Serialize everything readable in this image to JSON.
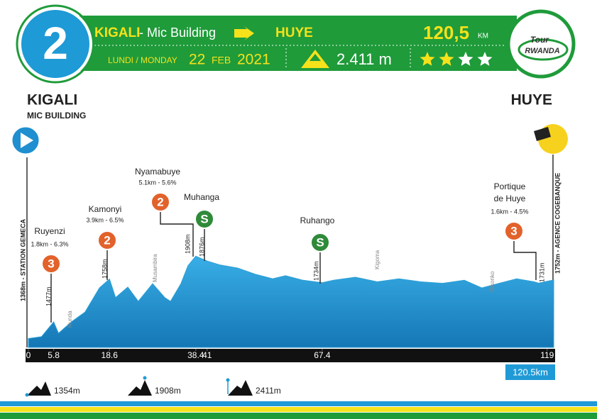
{
  "header": {
    "stage": "2",
    "start": "KIGALI",
    "start_place": "- Mic Building",
    "finish": "HUYE",
    "distance": "120,5",
    "distance_unit": "KM",
    "weekday": "LUNDI / MONDAY",
    "day": "22",
    "month": "FEB",
    "year": "2021",
    "total_climb": "2.411 m",
    "stars": {
      "filled": 2,
      "total": 4
    },
    "logo_top": "Tour",
    "logo_bottom": "RWANDA"
  },
  "route": {
    "start": "KIGALI",
    "start_place": "MIC BUILDING",
    "finish": "HUYE",
    "total_label": "120.5km"
  },
  "climbs": [
    {
      "name": "Ruyenzi",
      "detail": "1.8km - 6.3%",
      "category": "3"
    },
    {
      "name": "Kamonyi",
      "detail": "3.9km - 6.5%",
      "category": "2"
    },
    {
      "name": "Nyamabuye",
      "detail": "5.1km - 5.6%",
      "category": "2"
    },
    {
      "name": "Muhanga",
      "category": "S"
    },
    {
      "name": "Ruhango",
      "category": "S"
    },
    {
      "name": "Portique",
      "name_line2": "de Huye",
      "detail": "1.6km - 4.5%",
      "category": "3"
    }
  ],
  "points": [
    "1368m - STATION GEMECA",
    "1477m",
    "Runda",
    "1758m",
    "Musambira",
    "1908m",
    "1876m",
    "1734m",
    "Kigoma",
    "Gikonko",
    "1731m",
    "1752m - AGENCE COGEBANQUE"
  ],
  "legend": [
    "1354m",
    "1908m",
    "2411m"
  ],
  "chart_data": {
    "type": "area",
    "color": "#2b9fd6",
    "x": [
      0,
      3,
      5.8,
      6.9,
      10,
      13,
      16.3,
      18.6,
      20,
      22.8,
      25.2,
      28.5,
      31.3,
      32.6,
      35,
      36.6,
      38.4,
      41,
      44,
      48,
      52,
      56,
      59,
      63,
      67.4,
      70,
      75,
      80,
      85,
      90,
      95,
      100,
      104,
      108,
      112,
      116,
      117,
      120.5
    ],
    "values": [
      1368,
      1380,
      1477,
      1403,
      1480,
      1542,
      1700,
      1758,
      1636,
      1705,
      1612,
      1728,
      1636,
      1612,
      1728,
      1845,
      1908,
      1876,
      1850,
      1830,
      1790,
      1760,
      1780,
      1750,
      1734,
      1750,
      1770,
      1740,
      1760,
      1740,
      1730,
      1750,
      1700,
      1730,
      1760,
      1740,
      1731,
      1752
    ],
    "xlim": [
      0,
      120.5
    ],
    "ylim": [
      1310,
      2100
    ],
    "xticks": [
      0,
      5.8,
      18.6,
      38.4,
      41,
      67.4,
      119
    ]
  }
}
